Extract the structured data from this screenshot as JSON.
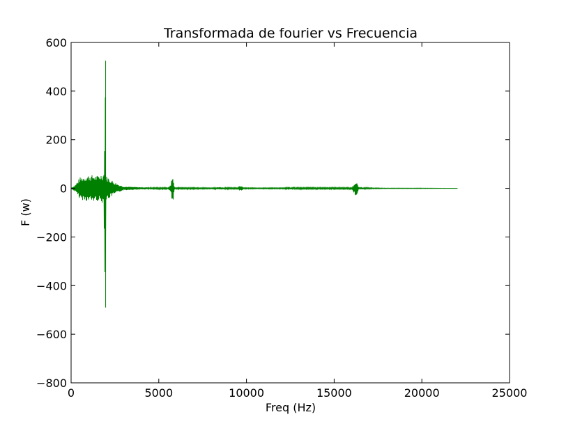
{
  "chart_data": {
    "type": "line",
    "title": "Transformada de fourier vs Frecuencia",
    "xlabel": "Freq (Hz)",
    "ylabel": "F (w)",
    "xlim": [
      0,
      25000
    ],
    "ylim": [
      -800,
      600
    ],
    "xticks": [
      0,
      5000,
      10000,
      15000,
      20000,
      25000
    ],
    "xtick_labels": [
      "0",
      "5000",
      "10000",
      "15000",
      "20000",
      "25000"
    ],
    "yticks": [
      600,
      400,
      200,
      0,
      -200,
      -400,
      -600,
      -800
    ],
    "ytick_labels": [
      "600",
      "400",
      "200",
      "0",
      "−200",
      "−400",
      "−600",
      "−800"
    ],
    "grid": false,
    "series": [
      {
        "color": "#008000",
        "x": [
          0,
          250,
          500,
          750,
          1000,
          1250,
          1500,
          1750,
          1850,
          1900,
          1940,
          1960,
          1980,
          2000,
          2050,
          2200,
          2500,
          2750,
          3000,
          3500,
          4000,
          4500,
          5000,
          5500,
          5700,
          5750,
          5800,
          5850,
          5900,
          6000,
          7000,
          8000,
          8500,
          9000,
          9500,
          9600,
          9700,
          9800,
          10000,
          11000,
          12000,
          12300,
          12400,
          12500,
          13000,
          14000,
          15000,
          16000,
          16200,
          16300,
          16400,
          17000,
          18000,
          19000,
          20000,
          21000,
          22050
        ],
        "y_upper": [
          0,
          15,
          45,
          50,
          55,
          55,
          52,
          60,
          60,
          150,
          420,
          525,
          60,
          50,
          50,
          40,
          25,
          15,
          8,
          6,
          5,
          4,
          3,
          3,
          15,
          60,
          55,
          20,
          5,
          3,
          3,
          2,
          5,
          3,
          3,
          10,
          10,
          5,
          2,
          2,
          2,
          3,
          8,
          4,
          3,
          3,
          3,
          3,
          25,
          22,
          5,
          2,
          1,
          1,
          1,
          0.5,
          0
        ],
        "y_lower": [
          0,
          -15,
          -45,
          -50,
          -55,
          -55,
          -52,
          -60,
          -60,
          -200,
          -440,
          -490,
          -60,
          -50,
          -50,
          -40,
          -25,
          -15,
          -8,
          -6,
          -5,
          -4,
          -3,
          -3,
          -15,
          -65,
          -70,
          -20,
          -5,
          -3,
          -3,
          -2,
          -5,
          -3,
          -3,
          -10,
          -10,
          -5,
          -2,
          -2,
          -2,
          -3,
          -8,
          -4,
          -3,
          -3,
          -3,
          -3,
          -30,
          -25,
          -5,
          -2,
          -1,
          -1,
          -1,
          -0.5,
          0
        ]
      }
    ]
  }
}
